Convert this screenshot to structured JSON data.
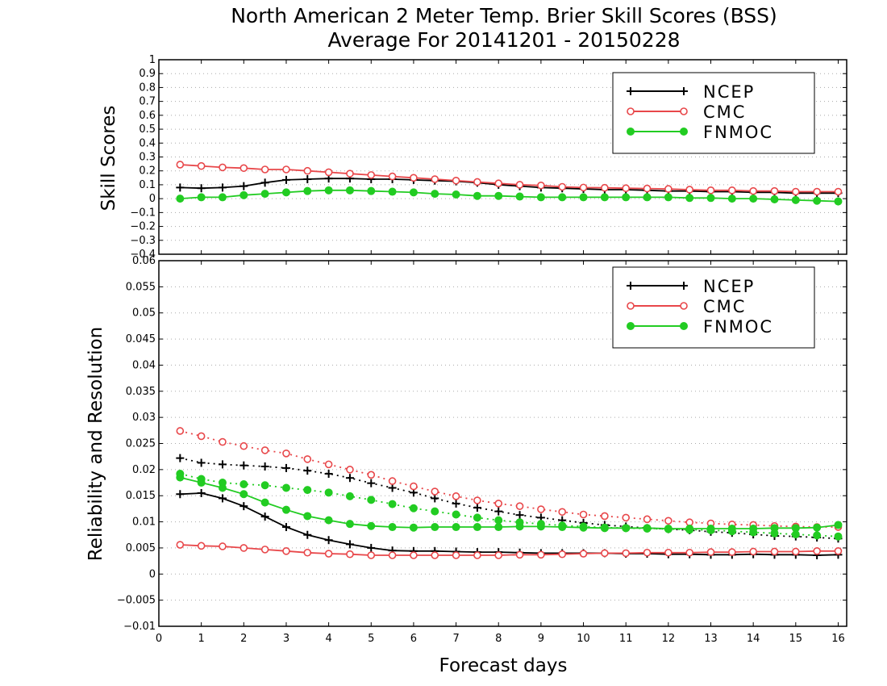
{
  "title": "North American 2 Meter Temp. Brier Skill Scores (BSS)",
  "subtitle": "Average For 20141201 - 20150228",
  "xlabel": "Forecast days",
  "colors": {
    "NCEP": "#000000",
    "CMC": "#e8474a",
    "FNMOC": "#22cc22",
    "grid": "#aaaaaa"
  },
  "chart_data": [
    {
      "type": "line",
      "panel": "top",
      "ylabel": "Skill Scores",
      "xlim": [
        0,
        16.2
      ],
      "ylim": [
        -0.4,
        1
      ],
      "xticks": [
        0,
        1,
        2,
        3,
        4,
        5,
        6,
        7,
        8,
        9,
        10,
        11,
        12,
        13,
        14,
        15,
        16
      ],
      "yticks": [
        -0.4,
        -0.3,
        -0.2,
        -0.1,
        0,
        0.1,
        0.2,
        0.3,
        0.4,
        0.5,
        0.6,
        0.7,
        0.8,
        0.9,
        1
      ],
      "legend_position": "top-right",
      "x": [
        0.5,
        1,
        1.5,
        2,
        2.5,
        3,
        3.5,
        4,
        4.5,
        5,
        5.5,
        6,
        6.5,
        7,
        7.5,
        8,
        8.5,
        9,
        9.5,
        10,
        10.5,
        11,
        11.5,
        12,
        12.5,
        13,
        13.5,
        14,
        14.5,
        15,
        15.5,
        16
      ],
      "series": [
        {
          "name": "NCEP",
          "line": "solid",
          "marker": "plus",
          "values": [
            0.08,
            0.075,
            0.08,
            0.09,
            0.115,
            0.135,
            0.14,
            0.145,
            0.145,
            0.14,
            0.14,
            0.135,
            0.13,
            0.125,
            0.115,
            0.1,
            0.09,
            0.08,
            0.075,
            0.07,
            0.065,
            0.065,
            0.06,
            0.055,
            0.055,
            0.05,
            0.05,
            0.045,
            0.045,
            0.04,
            0.04,
            0.04
          ]
        },
        {
          "name": "CMC",
          "line": "solid",
          "marker": "open-circle",
          "values": [
            0.245,
            0.235,
            0.225,
            0.22,
            0.21,
            0.21,
            0.2,
            0.19,
            0.18,
            0.17,
            0.16,
            0.15,
            0.14,
            0.13,
            0.12,
            0.11,
            0.1,
            0.095,
            0.085,
            0.08,
            0.078,
            0.075,
            0.073,
            0.07,
            0.065,
            0.06,
            0.06,
            0.055,
            0.055,
            0.05,
            0.05,
            0.05
          ]
        },
        {
          "name": "FNMOC",
          "line": "solid",
          "marker": "filled-circle",
          "values": [
            0.0,
            0.01,
            0.01,
            0.025,
            0.035,
            0.045,
            0.055,
            0.06,
            0.06,
            0.055,
            0.05,
            0.045,
            0.035,
            0.03,
            0.02,
            0.02,
            0.015,
            0.01,
            0.01,
            0.01,
            0.01,
            0.01,
            0.01,
            0.01,
            0.005,
            0.005,
            0.0,
            0.0,
            -0.005,
            -0.01,
            -0.015,
            -0.02
          ]
        }
      ]
    },
    {
      "type": "line",
      "panel": "bottom",
      "ylabel": "Reliability and Resolution",
      "xlim": [
        0,
        16.2
      ],
      "ylim": [
        -0.01,
        0.06
      ],
      "xticks": [
        0,
        1,
        2,
        3,
        4,
        5,
        6,
        7,
        8,
        9,
        10,
        11,
        12,
        13,
        14,
        15,
        16
      ],
      "yticks": [
        -0.01,
        -0.005,
        0,
        0.005,
        0.01,
        0.015,
        0.02,
        0.025,
        0.03,
        0.035,
        0.04,
        0.045,
        0.05,
        0.055,
        0.06
      ],
      "legend_position": "top-right",
      "x": [
        0.5,
        1,
        1.5,
        2,
        2.5,
        3,
        3.5,
        4,
        4.5,
        5,
        5.5,
        6,
        6.5,
        7,
        7.5,
        8,
        8.5,
        9,
        9.5,
        10,
        10.5,
        11,
        11.5,
        12,
        12.5,
        13,
        13.5,
        14,
        14.5,
        15,
        15.5,
        16
      ],
      "series": [
        {
          "name": "NCEP",
          "line": "solid",
          "marker": "plus",
          "values": [
            0.0153,
            0.0155,
            0.0145,
            0.013,
            0.011,
            0.009,
            0.0075,
            0.0065,
            0.0057,
            0.005,
            0.0045,
            0.0044,
            0.0044,
            0.0043,
            0.0042,
            0.0042,
            0.0041,
            0.004,
            0.004,
            0.004,
            0.004,
            0.0039,
            0.0039,
            0.0038,
            0.0038,
            0.0037,
            0.0037,
            0.0038,
            0.0037,
            0.0037,
            0.0036,
            0.0037
          ]
        },
        {
          "line": "dotted",
          "marker": "plus",
          "values": [
            0.0222,
            0.0213,
            0.021,
            0.0208,
            0.0206,
            0.0203,
            0.0198,
            0.0192,
            0.0184,
            0.0174,
            0.0165,
            0.0156,
            0.0145,
            0.0135,
            0.0127,
            0.012,
            0.0113,
            0.0108,
            0.0103,
            0.0098,
            0.0094,
            0.0091,
            0.0088,
            0.0086,
            0.0084,
            0.0081,
            0.0079,
            0.0076,
            0.0073,
            0.0072,
            0.007,
            0.0068
          ]
        },
        {
          "name": "CMC",
          "line": "solid",
          "marker": "open-circle",
          "values": [
            0.0056,
            0.0054,
            0.0053,
            0.005,
            0.0047,
            0.0044,
            0.0041,
            0.0039,
            0.0038,
            0.0036,
            0.0036,
            0.0036,
            0.0036,
            0.0036,
            0.0036,
            0.0036,
            0.0037,
            0.0037,
            0.0038,
            0.0039,
            0.004,
            0.004,
            0.0041,
            0.0041,
            0.0041,
            0.0042,
            0.0042,
            0.0043,
            0.0043,
            0.0043,
            0.0044,
            0.0044
          ]
        },
        {
          "line": "dotted",
          "marker": "open-circle",
          "values": [
            0.0274,
            0.0264,
            0.0253,
            0.0245,
            0.0237,
            0.0231,
            0.022,
            0.021,
            0.02,
            0.019,
            0.0178,
            0.0168,
            0.0158,
            0.0149,
            0.0141,
            0.0135,
            0.013,
            0.0124,
            0.0119,
            0.0114,
            0.0111,
            0.0108,
            0.0105,
            0.0102,
            0.0099,
            0.0097,
            0.0095,
            0.0094,
            0.0092,
            0.0091,
            0.009,
            0.009
          ]
        },
        {
          "name": "FNMOC",
          "line": "solid",
          "marker": "filled-circle",
          "values": [
            0.0185,
            0.0175,
            0.0165,
            0.0153,
            0.0137,
            0.0123,
            0.0111,
            0.0103,
            0.0096,
            0.0092,
            0.009,
            0.0089,
            0.009,
            0.009,
            0.009,
            0.009,
            0.0091,
            0.0091,
            0.009,
            0.0089,
            0.0088,
            0.0088,
            0.0088,
            0.0087,
            0.0087,
            0.0087,
            0.0087,
            0.0087,
            0.0088,
            0.0088,
            0.0089,
            0.0094
          ]
        },
        {
          "line": "dotted",
          "marker": "filled-circle",
          "values": [
            0.0192,
            0.0182,
            0.0175,
            0.0172,
            0.017,
            0.0165,
            0.0161,
            0.0156,
            0.0149,
            0.0142,
            0.0134,
            0.0126,
            0.012,
            0.0114,
            0.0108,
            0.0103,
            0.0099,
            0.0096,
            0.0093,
            0.0091,
            0.0089,
            0.0088,
            0.0087,
            0.0086,
            0.0085,
            0.0084,
            0.0082,
            0.008,
            0.0078,
            0.0076,
            0.0074,
            0.0072
          ]
        }
      ]
    }
  ]
}
